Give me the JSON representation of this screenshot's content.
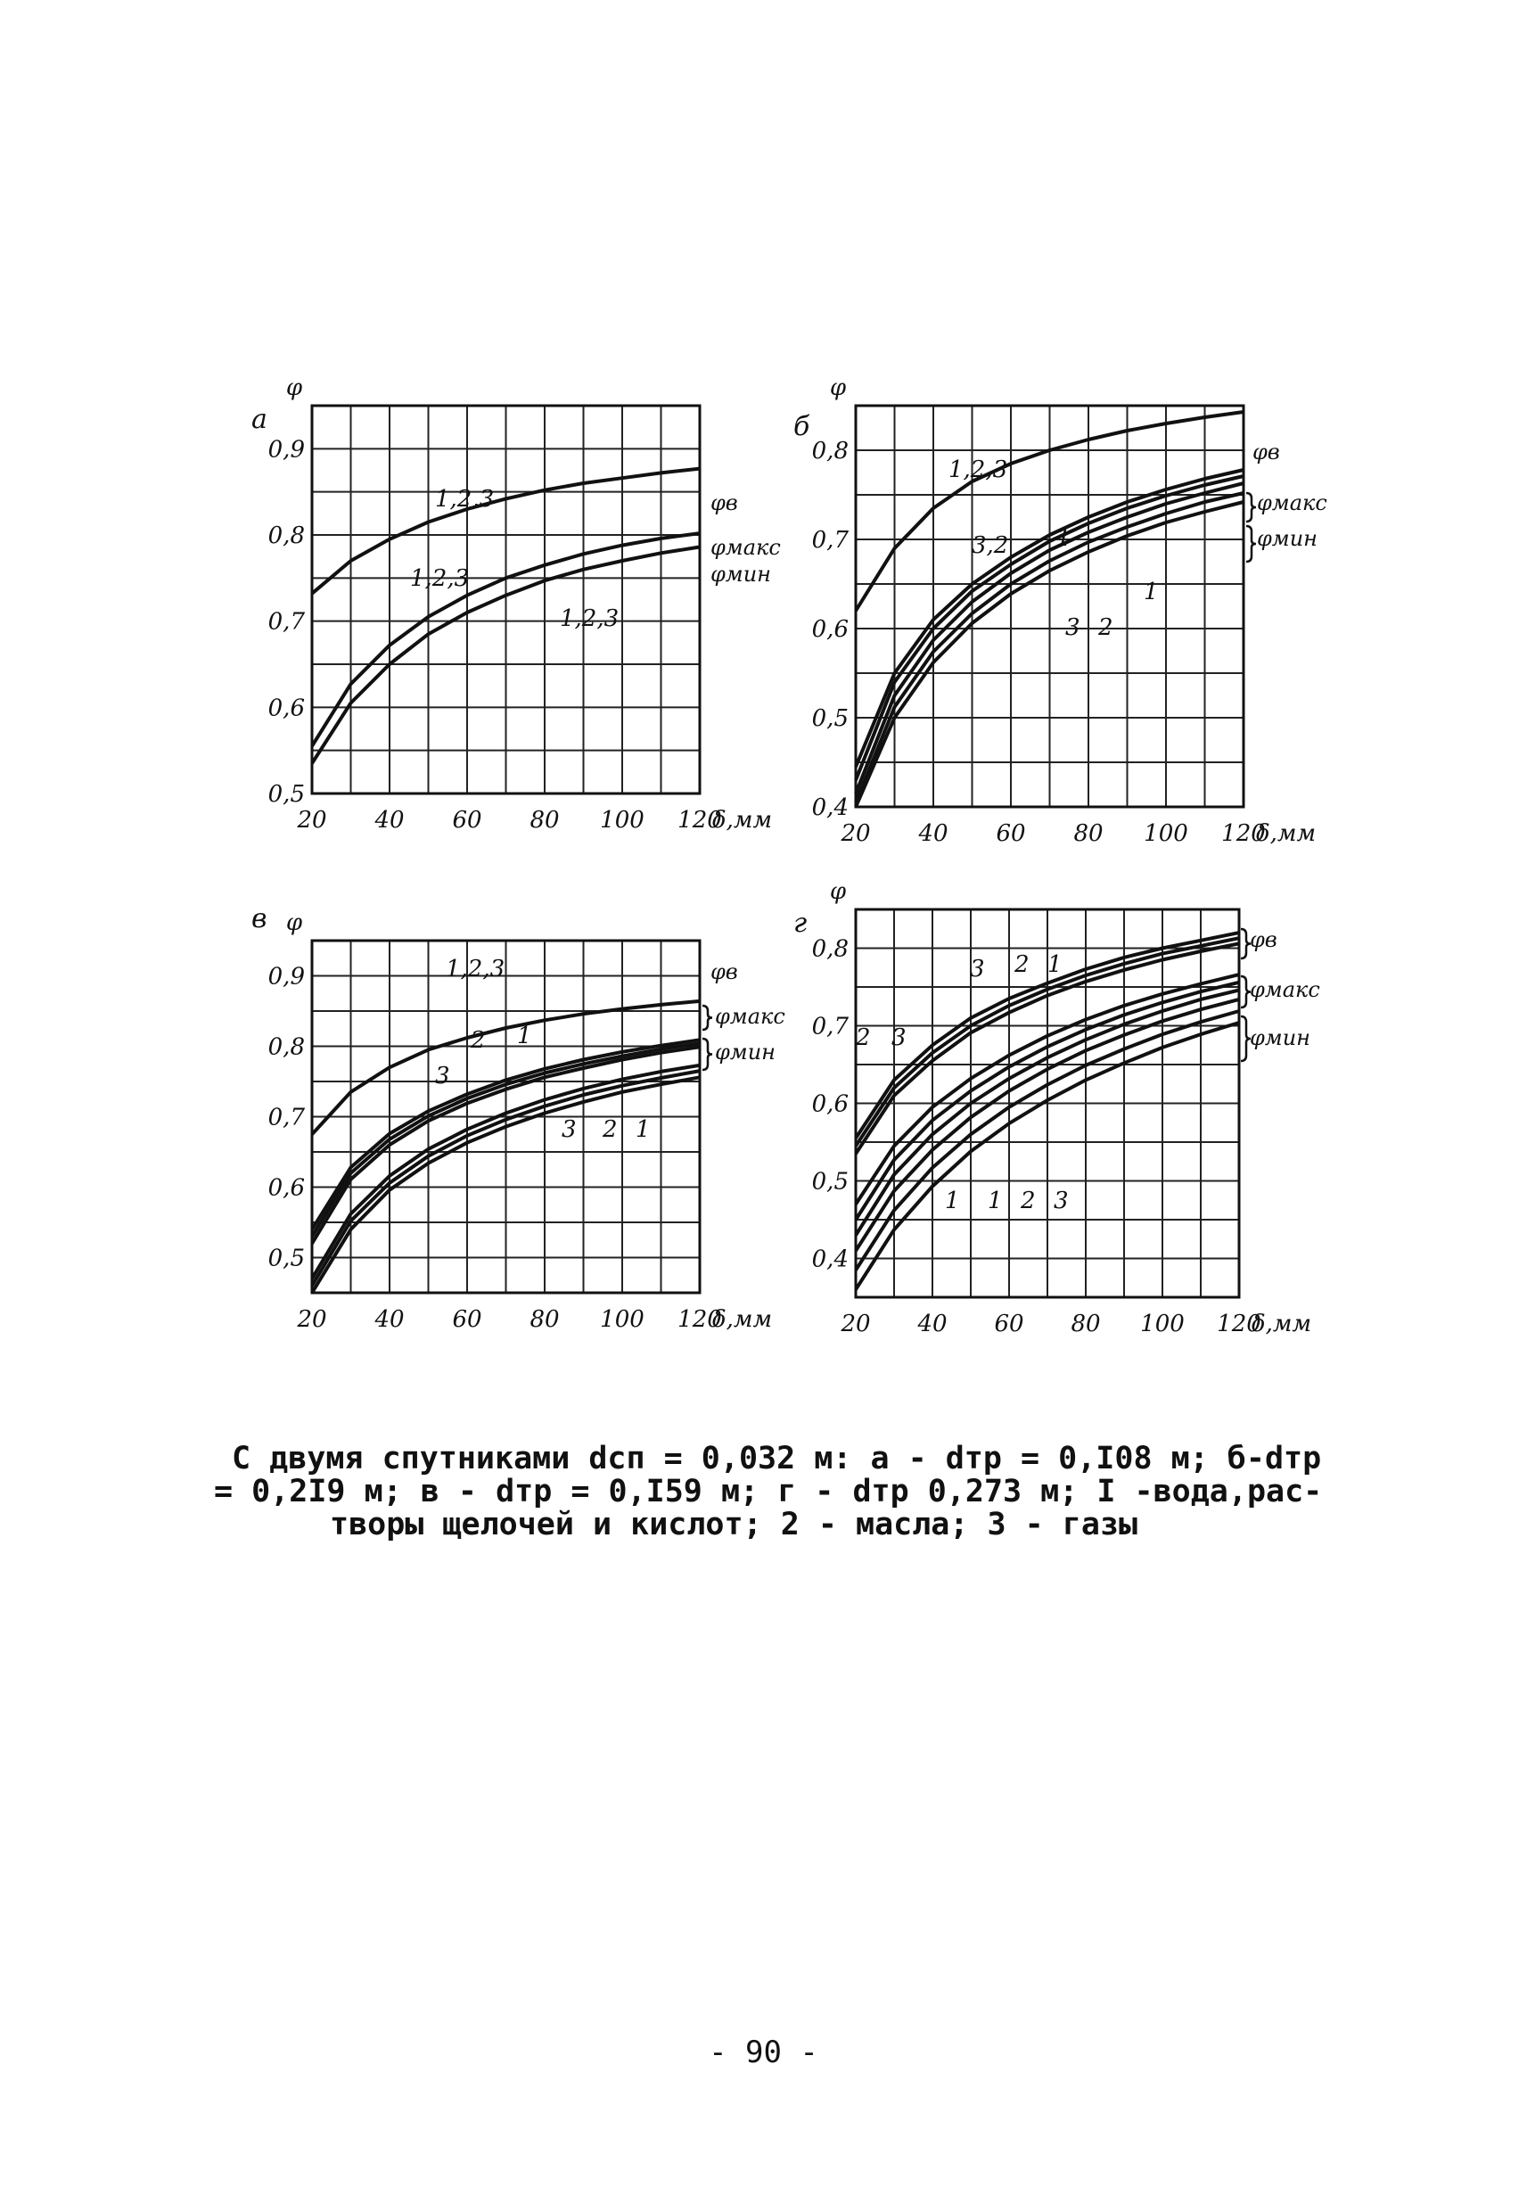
{
  "chart_data": [
    {
      "type": "line",
      "panel_letter": "а",
      "ylabel": "φ",
      "xlabel": "δ,мм",
      "xlim": [
        20,
        120
      ],
      "ylim": [
        0.5,
        0.95
      ],
      "x_ticks": [
        "20",
        "40",
        "60",
        "80",
        "100",
        "120"
      ],
      "y_ticks": [
        "0,5",
        "0,6",
        "0,7",
        "0,8",
        "0,9"
      ],
      "grid": true,
      "x": [
        20,
        30,
        40,
        50,
        60,
        70,
        80,
        90,
        100,
        110,
        120
      ],
      "series": [
        {
          "name": "φв",
          "values": [
            0.732,
            0.77,
            0.795,
            0.815,
            0.83,
            0.842,
            0.852,
            0.86,
            0.866,
            0.872,
            0.877
          ]
        },
        {
          "name": "φмакс",
          "values": [
            0.555,
            0.627,
            0.672,
            0.705,
            0.73,
            0.75,
            0.765,
            0.778,
            0.788,
            0.796,
            0.802
          ]
        },
        {
          "name": "φмин",
          "values": [
            0.535,
            0.605,
            0.65,
            0.685,
            0.71,
            0.73,
            0.747,
            0.76,
            0.77,
            0.779,
            0.786
          ]
        }
      ],
      "annotations": [
        "1,2,3",
        "1,2,3",
        "1,2,3"
      ],
      "legend": [
        "φв",
        "φмакс",
        "φмин"
      ]
    },
    {
      "type": "line",
      "panel_letter": "б",
      "ylabel": "φ",
      "xlabel": "δ,мм",
      "xlim": [
        20,
        120
      ],
      "ylim": [
        0.4,
        0.85
      ],
      "x_ticks": [
        "20",
        "40",
        "60",
        "80",
        "100",
        "120"
      ],
      "y_ticks": [
        "0,4",
        "0,5",
        "0,6",
        "0,7",
        "0,8"
      ],
      "grid": true,
      "x": [
        20,
        30,
        40,
        50,
        60,
        70,
        80,
        90,
        100,
        110,
        120
      ],
      "series": [
        {
          "name": "φв",
          "values": [
            0.62,
            0.69,
            0.735,
            0.765,
            0.785,
            0.8,
            0.812,
            0.822,
            0.83,
            0.837,
            0.843
          ]
        },
        {
          "name": "φмакс 3,2",
          "values": [
            0.445,
            0.55,
            0.61,
            0.65,
            0.68,
            0.705,
            0.725,
            0.742,
            0.756,
            0.768,
            0.778
          ]
        },
        {
          "name": "φмакс 1",
          "values": [
            0.43,
            0.54,
            0.6,
            0.642,
            0.672,
            0.698,
            0.718,
            0.735,
            0.749,
            0.761,
            0.771
          ]
        },
        {
          "name": "φмин 1",
          "values": [
            0.415,
            0.525,
            0.587,
            0.63,
            0.662,
            0.688,
            0.708,
            0.725,
            0.74,
            0.752,
            0.763
          ]
        },
        {
          "name": "φмин 2",
          "values": [
            0.405,
            0.512,
            0.574,
            0.617,
            0.65,
            0.676,
            0.697,
            0.714,
            0.729,
            0.742,
            0.752
          ]
        },
        {
          "name": "φмин 3",
          "values": [
            0.4,
            0.5,
            0.562,
            0.606,
            0.639,
            0.665,
            0.686,
            0.704,
            0.719,
            0.731,
            0.742
          ]
        }
      ],
      "annotations": [
        "1,2,3",
        "3,2",
        "1",
        "1",
        "3",
        "2"
      ],
      "legend": [
        "φв",
        "φмакс",
        "φмин"
      ]
    },
    {
      "type": "line",
      "panel_letter": "в",
      "ylabel": "φ",
      "xlabel": "δ,мм",
      "xlim": [
        20,
        120
      ],
      "ylim": [
        0.45,
        0.95
      ],
      "x_ticks": [
        "20",
        "40",
        "60",
        "80",
        "100",
        "120"
      ],
      "y_ticks": [
        "0,5",
        "0,6",
        "0,7",
        "0,8",
        "0,9"
      ],
      "grid": true,
      "x": [
        20,
        30,
        40,
        50,
        60,
        70,
        80,
        90,
        100,
        110,
        120
      ],
      "series": [
        {
          "name": "φв",
          "values": [
            0.675,
            0.735,
            0.77,
            0.795,
            0.812,
            0.826,
            0.837,
            0.846,
            0.853,
            0.859,
            0.864
          ]
        },
        {
          "name": "φмакс 3",
          "values": [
            0.54,
            0.628,
            0.676,
            0.708,
            0.732,
            0.752,
            0.768,
            0.781,
            0.792,
            0.801,
            0.809
          ]
        },
        {
          "name": "φмакс 2",
          "values": [
            0.53,
            0.62,
            0.668,
            0.701,
            0.726,
            0.746,
            0.762,
            0.775,
            0.786,
            0.796,
            0.804
          ]
        },
        {
          "name": "φмакс 1",
          "values": [
            0.52,
            0.611,
            0.66,
            0.694,
            0.719,
            0.739,
            0.756,
            0.769,
            0.781,
            0.791,
            0.799
          ]
        },
        {
          "name": "φмин 3",
          "values": [
            0.47,
            0.562,
            0.616,
            0.654,
            0.682,
            0.705,
            0.724,
            0.74,
            0.753,
            0.764,
            0.773
          ]
        },
        {
          "name": "φмин 2",
          "values": [
            0.46,
            0.552,
            0.606,
            0.644,
            0.673,
            0.696,
            0.715,
            0.731,
            0.744,
            0.755,
            0.765
          ]
        },
        {
          "name": "φмин 1",
          "values": [
            0.45,
            0.54,
            0.596,
            0.634,
            0.663,
            0.686,
            0.705,
            0.721,
            0.735,
            0.746,
            0.756
          ]
        }
      ],
      "annotations": [
        "1,2,3",
        "2",
        "1",
        "3",
        "3",
        "2",
        "1"
      ],
      "legend": [
        "φв",
        "φмакс",
        "φмин"
      ]
    },
    {
      "type": "line",
      "panel_letter": "г",
      "ylabel": "φ",
      "xlabel": "δ,мм",
      "xlim": [
        20,
        120
      ],
      "ylim": [
        0.35,
        0.85
      ],
      "x_ticks": [
        "20",
        "40",
        "60",
        "80",
        "100",
        "120"
      ],
      "y_ticks": [
        "0,4",
        "0,5",
        "0,6",
        "0,7",
        "0,8"
      ],
      "grid": true,
      "x": [
        20,
        30,
        40,
        50,
        60,
        70,
        80,
        90,
        100,
        110,
        120
      ],
      "series": [
        {
          "name": "φв 3",
          "values": [
            0.555,
            0.63,
            0.675,
            0.71,
            0.735,
            0.755,
            0.773,
            0.788,
            0.8,
            0.81,
            0.82
          ]
        },
        {
          "name": "φв 2",
          "values": [
            0.545,
            0.62,
            0.665,
            0.7,
            0.726,
            0.747,
            0.765,
            0.78,
            0.793,
            0.803,
            0.813
          ]
        },
        {
          "name": "φв 1",
          "values": [
            0.535,
            0.61,
            0.655,
            0.691,
            0.717,
            0.739,
            0.757,
            0.772,
            0.785,
            0.796,
            0.806
          ]
        },
        {
          "name": "φмакс 1",
          "values": [
            0.47,
            0.545,
            0.595,
            0.632,
            0.662,
            0.687,
            0.708,
            0.726,
            0.741,
            0.754,
            0.766
          ]
        },
        {
          "name": "φмакс 2",
          "values": [
            0.45,
            0.527,
            0.578,
            0.616,
            0.647,
            0.673,
            0.695,
            0.714,
            0.73,
            0.744,
            0.756
          ]
        },
        {
          "name": "φмакс 3",
          "values": [
            0.43,
            0.508,
            0.56,
            0.6,
            0.632,
            0.659,
            0.682,
            0.702,
            0.719,
            0.734,
            0.746
          ]
        },
        {
          "name": "φмин 1",
          "values": [
            0.41,
            0.487,
            0.54,
            0.582,
            0.616,
            0.644,
            0.668,
            0.688,
            0.706,
            0.721,
            0.734
          ]
        },
        {
          "name": "φмин 2",
          "values": [
            0.385,
            0.462,
            0.517,
            0.56,
            0.595,
            0.624,
            0.649,
            0.67,
            0.689,
            0.705,
            0.719
          ]
        },
        {
          "name": "φмин 3",
          "values": [
            0.36,
            0.437,
            0.493,
            0.538,
            0.574,
            0.604,
            0.63,
            0.652,
            0.672,
            0.689,
            0.704
          ]
        }
      ],
      "annotations": [
        "3",
        "2",
        "1",
        "2",
        "3",
        "1",
        "1",
        "2",
        "3"
      ],
      "legend": [
        "φв",
        "φмакс",
        "φмин"
      ]
    }
  ],
  "caption": {
    "line1": "С двумя спутниками dсп = 0,032 м:  а - dтр = 0,I08 м; б-dтр",
    "line2": "= 0,2I9 м; в - dтр = 0,I59 м; г - dтр 0,273 м; I -вода,рас-",
    "line3": "творы щелочей и кислот; 2 - масла; 3 - газы"
  },
  "page_number": "- 90 -"
}
